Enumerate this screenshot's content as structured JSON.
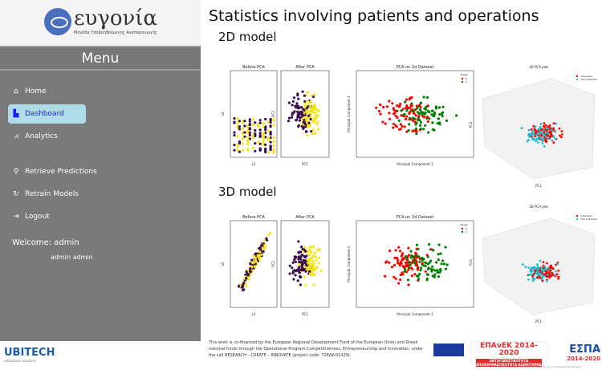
{
  "sidebar": {
    "logo_name": "ευγονία",
    "logo_sub": "Μονάδα Υποβοηθούμενης Αναπαραγωγής",
    "menu_title": "Menu",
    "items": [
      {
        "label": "Home",
        "icon": "home-icon"
      },
      {
        "label": "Dashboard",
        "icon": "bar-chart-icon",
        "active": true
      },
      {
        "label": "Analytics",
        "icon": "line-chart-icon"
      },
      {
        "label": "Retrieve Predictions",
        "icon": "search-icon"
      },
      {
        "label": "Retrain Models",
        "icon": "refresh-icon"
      },
      {
        "label": "Logout",
        "icon": "logout-icon"
      }
    ],
    "welcome": "Welcome: admin",
    "user": "admin admin",
    "company": "UBITECH",
    "company_sub": "ubiquitous solutions"
  },
  "main": {
    "title": "Statistics involving patients and operations",
    "sections": [
      "2D model",
      "3D model"
    ]
  },
  "chart_data": [
    {
      "type": "scatter",
      "title": "Before PCA",
      "xlabel": "x1",
      "ylabel": "x2",
      "series": [
        {
          "name": "0",
          "color": "#3b0f4f"
        },
        {
          "name": "1",
          "color": "#f5e51b"
        }
      ]
    },
    {
      "type": "scatter",
      "title": "After PCA",
      "xlabel": "PC1",
      "ylabel": "PC2",
      "series": [
        {
          "name": "0",
          "color": "#3b0f4f"
        },
        {
          "name": "1",
          "color": "#f5e51b"
        }
      ]
    },
    {
      "type": "scatter",
      "title": "PCA on 2d Dataset",
      "xlabel": "Principal Component 1",
      "ylabel": "Principal Component 2",
      "legend_title": "Target",
      "series": [
        {
          "name": "0",
          "color": "#ff0000"
        },
        {
          "name": "1",
          "color": "#008000"
        }
      ]
    },
    {
      "type": "scatter",
      "title": "3D PCA plot",
      "xlabel": "PC1",
      "ylabel": "PC2",
      "zlabel": "y",
      "series": [
        {
          "name": "Collected",
          "color": "#ff0000"
        },
        {
          "name": "Not Collected",
          "color": "#17becf"
        }
      ]
    }
  ],
  "footer": {
    "text": "This work is co-financed by the European Regional Development Fund of the European Union and Greek national funds through the Operational Program Competitiveness, Entrepreneurship and Innovation, under the call RESEARCH – CREATE – INNOVATE (project code: T2EΔK-01429).",
    "epanek": "ΕΠΑνΕΚ 2014-2020",
    "epanek_sub": "ΑΝΤΑΓΩΝΙΣΤΙΚΟΤΗΤΑ ΕΠΙΧΕΙΡΗΜΑΤΙΚΟΤΗΤΑ ΚΑΙΝΟΤΟΜΙΑ",
    "espa": "ΕΣΠΑ",
    "espa_years": "2014-2020",
    "eu_note": "Με τη συγχρηματοδότηση της Ελλάδας και της Ευρωπαϊκής Ένωσης"
  }
}
